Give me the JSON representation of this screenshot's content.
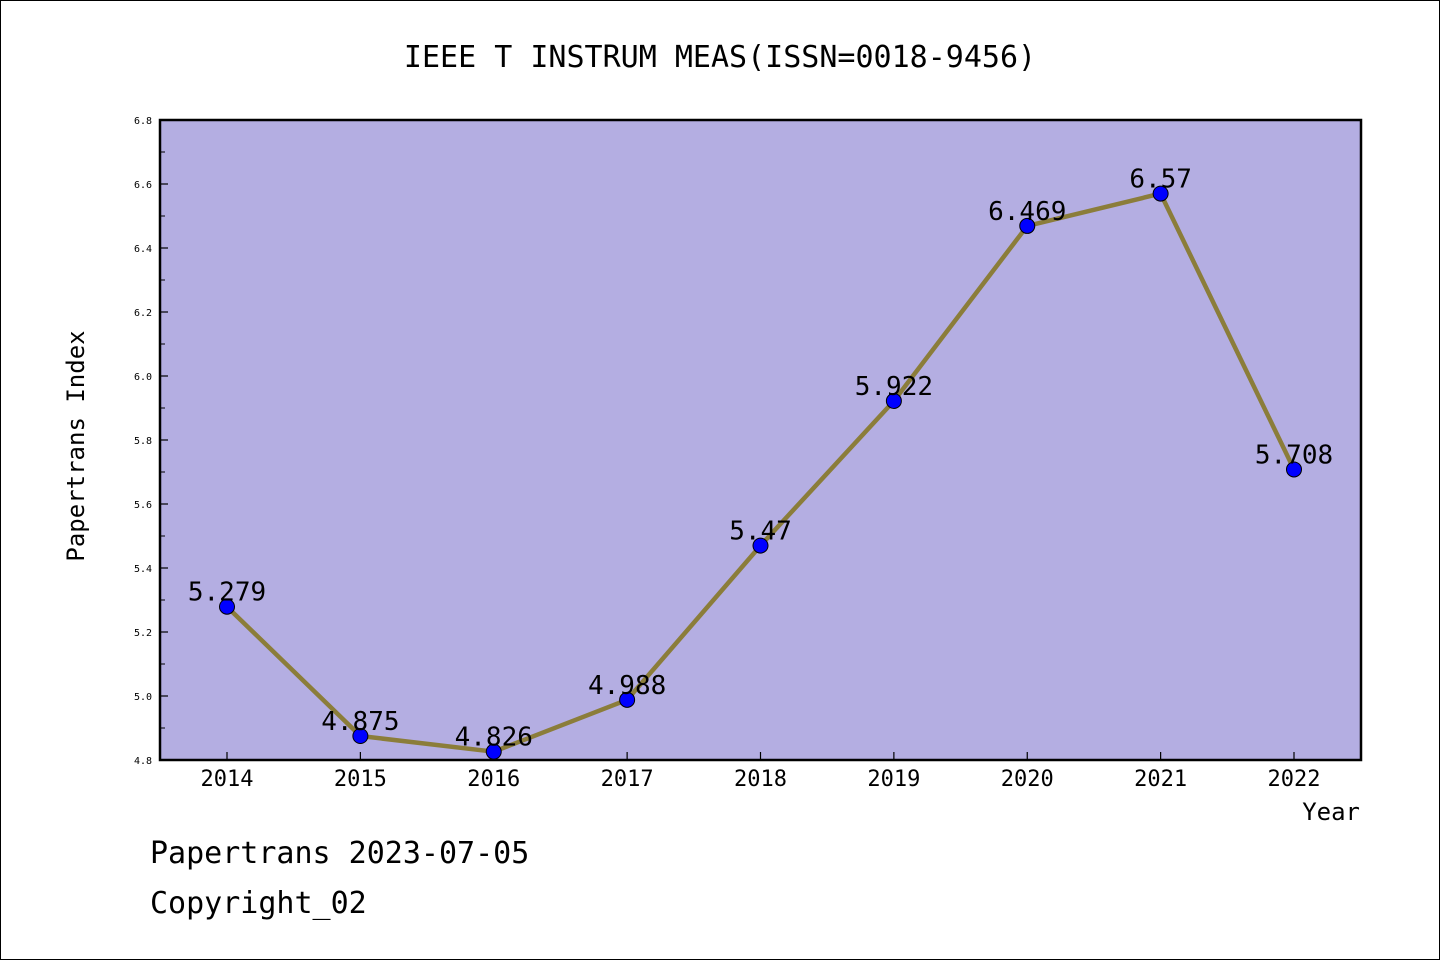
{
  "chart_data": {
    "type": "line",
    "title": "IEEE T INSTRUM MEAS(ISSN=0018-9456)",
    "xlabel": "Year",
    "ylabel": "Papertrans Index",
    "categories": [
      "2014",
      "2015",
      "2016",
      "2017",
      "2018",
      "2019",
      "2020",
      "2021",
      "2022"
    ],
    "values": [
      5.279,
      4.875,
      4.826,
      4.988,
      5.47,
      5.922,
      6.469,
      6.57,
      5.708
    ],
    "data_labels": [
      "5.279",
      "4.875",
      "4.826",
      "4.988",
      "5.47",
      "5.922",
      "6.469",
      "6.57",
      "5.708"
    ],
    "ylim": [
      4.8,
      6.8
    ],
    "yticks": [
      "4.8",
      "5.0",
      "5.2",
      "5.4",
      "5.6",
      "5.8",
      "6.0",
      "6.2",
      "6.4",
      "6.6",
      "6.8"
    ],
    "grid": false,
    "colors": {
      "plot_background": "#b4aee2",
      "line": "#8b7d3a",
      "marker": "#0000ff"
    }
  },
  "footer": {
    "line1": "Papertrans 2023-07-05",
    "line2": "Copyright_02"
  }
}
